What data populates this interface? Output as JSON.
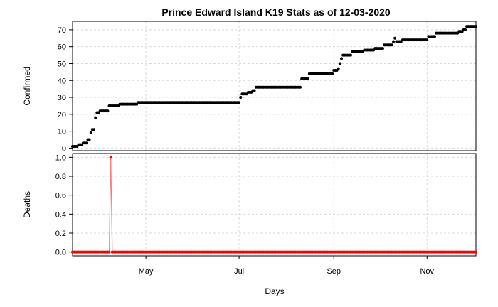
{
  "chart_data": {
    "title": "Prince Edward Island K19 Stats as of 12-03-2020",
    "xlabel": "Days",
    "x_range": [
      "2020-03-14",
      "2020-12-03"
    ],
    "x_ticks": [
      {
        "date": "2020-05-01",
        "label": "May"
      },
      {
        "date": "2020-07-01",
        "label": "Jul"
      },
      {
        "date": "2020-09-01",
        "label": "Sep"
      },
      {
        "date": "2020-11-01",
        "label": "Nov"
      }
    ],
    "grid": true,
    "panels": [
      {
        "type": "scatter",
        "ylabel": "Confirmed",
        "ylim": [
          -1.5,
          75
        ],
        "y_ticks": [
          0,
          10,
          20,
          30,
          40,
          50,
          60,
          70
        ],
        "color": "#000000",
        "series": [
          {
            "points": [
              [
                "2020-03-14",
                1
              ],
              [
                "2020-03-18",
                2
              ],
              [
                "2020-03-21",
                3
              ],
              [
                "2020-03-24",
                5
              ],
              [
                "2020-03-26",
                9
              ],
              [
                "2020-03-27",
                11
              ],
              [
                "2020-03-29",
                18
              ],
              [
                "2020-03-30",
                21
              ],
              [
                "2020-04-01",
                22
              ],
              [
                "2020-04-06",
                22
              ],
              [
                "2020-04-07",
                25
              ],
              [
                "2020-04-13",
                25
              ],
              [
                "2020-04-14",
                26
              ],
              [
                "2020-04-25",
                26
              ],
              [
                "2020-04-26",
                27
              ],
              [
                "2020-06-30",
                27
              ],
              [
                "2020-07-02",
                30
              ],
              [
                "2020-07-03",
                32
              ],
              [
                "2020-07-07",
                33
              ],
              [
                "2020-07-10",
                34
              ],
              [
                "2020-07-12",
                36
              ],
              [
                "2020-08-10",
                36
              ],
              [
                "2020-08-11",
                41
              ],
              [
                "2020-08-15",
                41
              ],
              [
                "2020-08-16",
                44
              ],
              [
                "2020-08-31",
                44
              ],
              [
                "2020-09-01",
                46
              ],
              [
                "2020-09-04",
                47
              ],
              [
                "2020-09-05",
                50
              ],
              [
                "2020-09-06",
                53
              ],
              [
                "2020-09-07",
                55
              ],
              [
                "2020-09-12",
                55
              ],
              [
                "2020-09-13",
                57
              ],
              [
                "2020-09-20",
                57
              ],
              [
                "2020-09-21",
                58
              ],
              [
                "2020-09-27",
                58
              ],
              [
                "2020-09-28",
                59
              ],
              [
                "2020-10-03",
                59
              ],
              [
                "2020-10-04",
                61
              ],
              [
                "2020-10-09",
                61
              ],
              [
                "2020-10-10",
                63
              ],
              [
                "2020-10-11",
                65
              ],
              [
                "2020-10-12",
                63
              ],
              [
                "2020-10-15",
                63
              ],
              [
                "2020-10-16",
                64
              ],
              [
                "2020-11-01",
                64
              ],
              [
                "2020-11-02",
                66
              ],
              [
                "2020-11-06",
                66
              ],
              [
                "2020-11-07",
                68
              ],
              [
                "2020-11-21",
                68
              ],
              [
                "2020-11-22",
                69
              ],
              [
                "2020-11-25",
                70
              ],
              [
                "2020-11-27",
                72
              ],
              [
                "2020-12-03",
                72
              ]
            ]
          }
        ]
      },
      {
        "type": "line",
        "ylabel": "Deaths",
        "ylim": [
          -0.04,
          1.04
        ],
        "y_ticks": [
          0.0,
          0.2,
          0.4,
          0.6,
          0.8,
          1.0
        ],
        "y_tick_labels": [
          "0.0",
          "0.2",
          "0.4",
          "0.6",
          "0.8",
          "1.0"
        ],
        "color": "#ff0000",
        "line_color": "#f08080",
        "series": [
          {
            "points": [
              [
                "2020-03-14",
                0
              ],
              [
                "2020-04-07",
                0
              ],
              [
                "2020-04-08",
                1
              ],
              [
                "2020-04-09",
                0
              ],
              [
                "2020-12-03",
                0
              ]
            ]
          }
        ]
      }
    ]
  }
}
